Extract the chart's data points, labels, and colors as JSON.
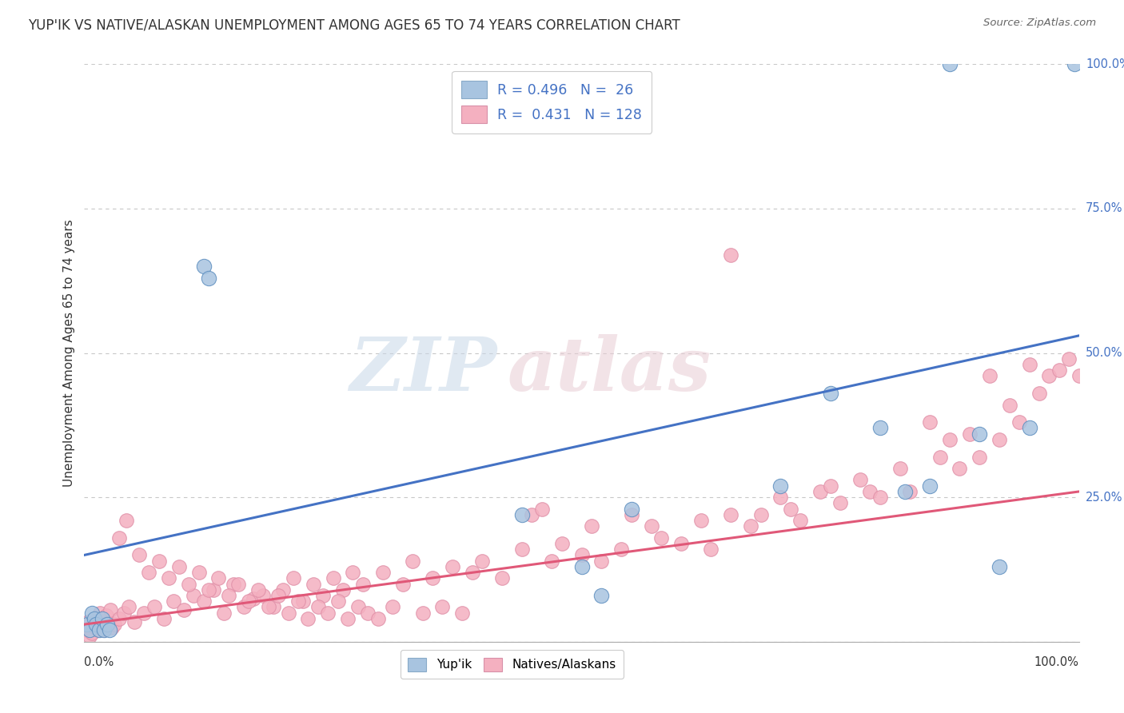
{
  "title": "YUP'IK VS NATIVE/ALASKAN UNEMPLOYMENT AMONG AGES 65 TO 74 YEARS CORRELATION CHART",
  "source": "Source: ZipAtlas.com",
  "ylabel": "Unemployment Among Ages 65 to 74 years",
  "ytick_labels": [
    "0.0%",
    "25.0%",
    "50.0%",
    "75.0%",
    "100.0%"
  ],
  "ytick_values": [
    0,
    25,
    50,
    75,
    100
  ],
  "xlim": [
    0,
    100
  ],
  "ylim": [
    0,
    100
  ],
  "blue_marker_color": "#a8c4e0",
  "pink_marker_color": "#f4b0c0",
  "blue_line_color": "#4472c4",
  "pink_line_color": "#e05878",
  "blue_R": 0.496,
  "blue_N": 26,
  "pink_R": 0.431,
  "pink_N": 128,
  "blue_line_x0": 0,
  "blue_line_x1": 100,
  "blue_line_y0": 15.0,
  "blue_line_y1": 53.0,
  "pink_line_x0": 0,
  "pink_line_x1": 100,
  "pink_line_y0": 3.0,
  "pink_line_y1": 26.0,
  "blue_x": [
    0.3,
    0.5,
    0.8,
    1.0,
    1.2,
    1.5,
    1.8,
    2.0,
    2.3,
    2.5,
    12.0,
    12.5,
    44.0,
    50.0,
    52.0,
    70.0,
    75.0,
    80.0,
    82.5,
    85.0,
    87.0,
    90.0,
    92.0,
    95.0,
    99.5,
    55.0
  ],
  "blue_y": [
    3.0,
    2.0,
    5.0,
    4.0,
    3.0,
    2.0,
    4.0,
    2.0,
    3.0,
    2.0,
    65.0,
    63.0,
    22.0,
    13.0,
    8.0,
    27.0,
    43.0,
    37.0,
    26.0,
    27.0,
    100.0,
    36.0,
    13.0,
    37.0,
    100.0,
    23.0
  ],
  "pink_x": [
    0.2,
    0.4,
    0.5,
    0.6,
    0.8,
    1.0,
    1.1,
    1.3,
    1.5,
    1.6,
    1.8,
    2.0,
    2.2,
    2.4,
    2.6,
    2.8,
    3.0,
    3.5,
    4.0,
    4.5,
    5.0,
    6.0,
    7.0,
    8.0,
    9.0,
    10.0,
    11.0,
    12.0,
    13.0,
    14.0,
    15.0,
    16.0,
    17.0,
    18.0,
    19.0,
    20.0,
    21.0,
    22.0,
    23.0,
    24.0,
    25.0,
    26.0,
    27.0,
    28.0,
    30.0,
    32.0,
    33.0,
    35.0,
    37.0,
    39.0,
    40.0,
    42.0,
    44.0,
    45.0,
    47.0,
    48.0,
    50.0,
    51.0,
    52.0,
    54.0,
    55.0,
    57.0,
    58.0,
    60.0,
    62.0,
    63.0,
    65.0,
    67.0,
    68.0,
    70.0,
    71.0,
    72.0,
    74.0,
    75.0,
    76.0,
    78.0,
    79.0,
    80.0,
    82.0,
    83.0,
    85.0,
    86.0,
    87.0,
    88.0,
    89.0,
    90.0,
    91.0,
    92.0,
    93.0,
    94.0,
    95.0,
    96.0,
    97.0,
    98.0,
    99.0,
    100.0,
    46.0,
    65.0,
    3.5,
    4.2,
    5.5,
    6.5,
    7.5,
    8.5,
    9.5,
    10.5,
    11.5,
    12.5,
    13.5,
    14.5,
    15.5,
    16.5,
    17.5,
    18.5,
    19.5,
    20.5,
    21.5,
    22.5,
    23.5,
    24.5,
    25.5,
    26.5,
    27.5,
    28.5,
    29.5,
    31.0,
    34.0,
    36.0,
    38.0
  ],
  "pink_y": [
    2.0,
    3.5,
    1.0,
    2.5,
    1.5,
    3.0,
    2.5,
    4.0,
    2.0,
    5.0,
    3.5,
    2.0,
    4.5,
    3.0,
    5.5,
    2.5,
    3.0,
    4.0,
    5.0,
    6.0,
    3.5,
    5.0,
    6.0,
    4.0,
    7.0,
    5.5,
    8.0,
    7.0,
    9.0,
    5.0,
    10.0,
    6.0,
    7.5,
    8.0,
    6.0,
    9.0,
    11.0,
    7.0,
    10.0,
    8.0,
    11.0,
    9.0,
    12.0,
    10.0,
    12.0,
    10.0,
    14.0,
    11.0,
    13.0,
    12.0,
    14.0,
    11.0,
    16.0,
    22.0,
    14.0,
    17.0,
    15.0,
    20.0,
    14.0,
    16.0,
    22.0,
    20.0,
    18.0,
    17.0,
    21.0,
    16.0,
    22.0,
    20.0,
    22.0,
    25.0,
    23.0,
    21.0,
    26.0,
    27.0,
    24.0,
    28.0,
    26.0,
    25.0,
    30.0,
    26.0,
    38.0,
    32.0,
    35.0,
    30.0,
    36.0,
    32.0,
    46.0,
    35.0,
    41.0,
    38.0,
    48.0,
    43.0,
    46.0,
    47.0,
    49.0,
    46.0,
    23.0,
    67.0,
    18.0,
    21.0,
    15.0,
    12.0,
    14.0,
    11.0,
    13.0,
    10.0,
    12.0,
    9.0,
    11.0,
    8.0,
    10.0,
    7.0,
    9.0,
    6.0,
    8.0,
    5.0,
    7.0,
    4.0,
    6.0,
    5.0,
    7.0,
    4.0,
    6.0,
    5.0,
    4.0,
    6.0,
    5.0,
    6.0,
    5.0
  ]
}
